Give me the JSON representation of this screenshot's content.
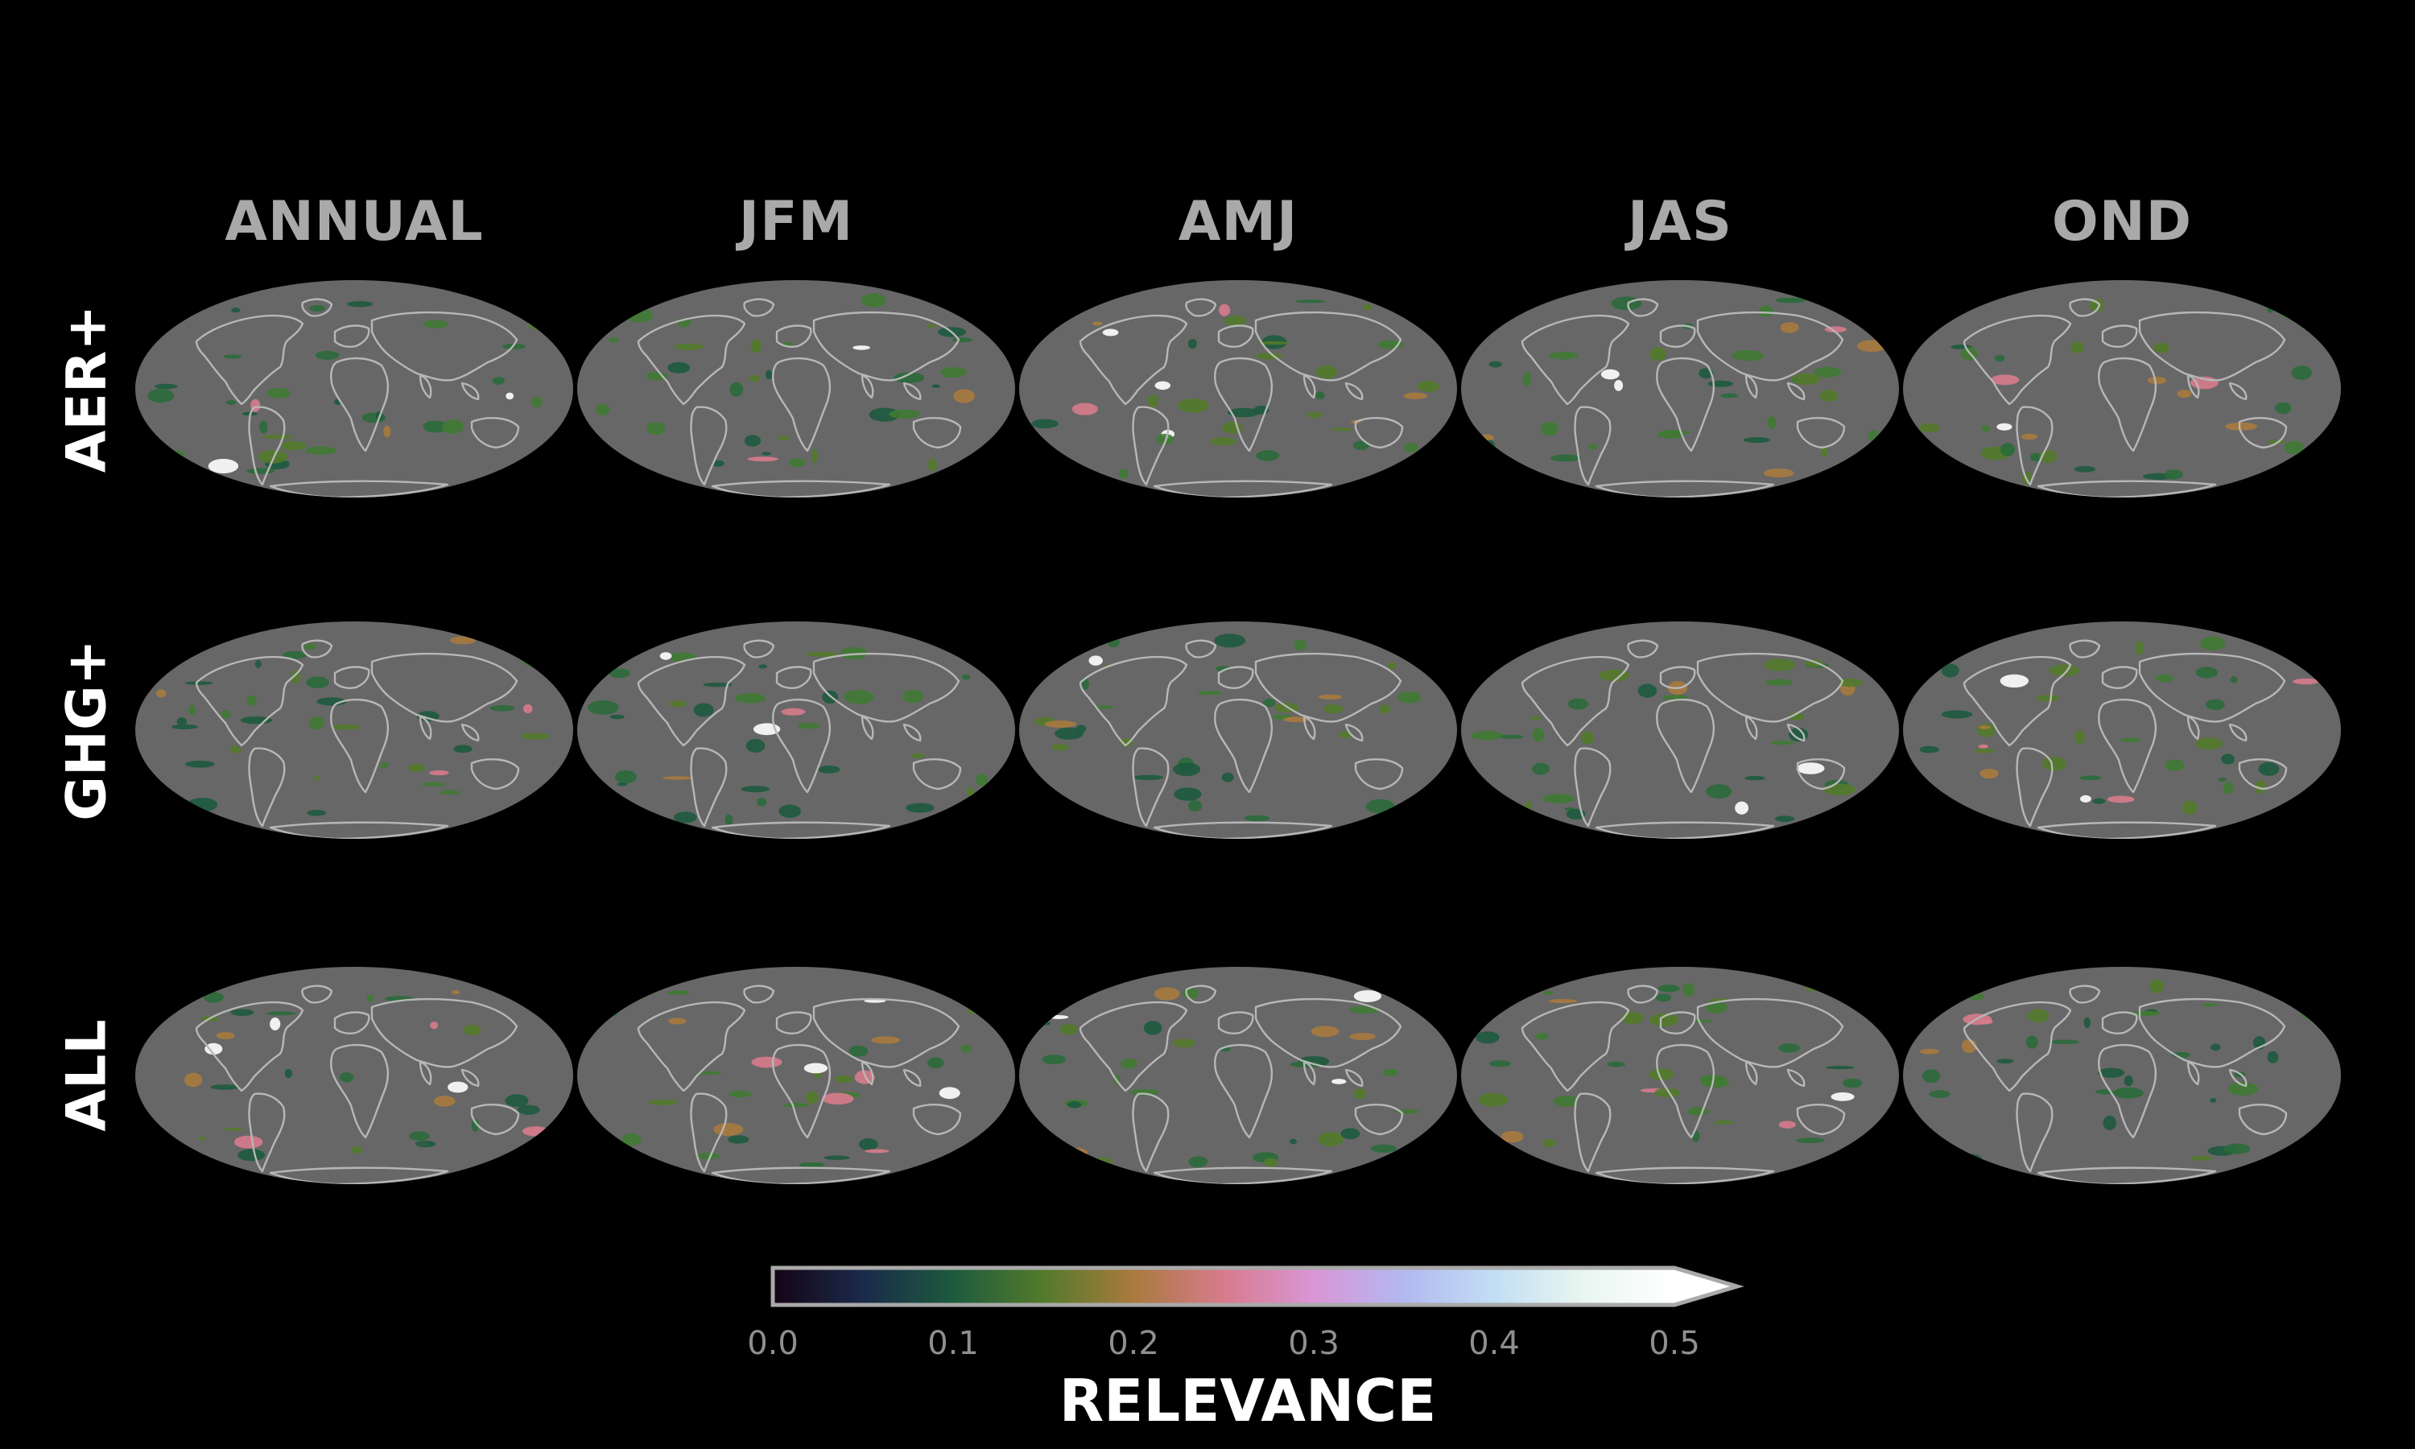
{
  "figure": {
    "columns": [
      "ANNUAL",
      "JFM",
      "AMJ",
      "JAS",
      "OND"
    ],
    "rows": [
      "AER+",
      "GHG+",
      "ALL"
    ]
  },
  "colorbar": {
    "title": "RELEVANCE",
    "ticks": [
      "0.0",
      "0.1",
      "0.2",
      "0.3",
      "0.4",
      "0.5"
    ],
    "range": [
      0.0,
      0.5
    ],
    "extend": "max",
    "colormap": "cubehelix",
    "stops": [
      "#150414",
      "#1a2a4a",
      "#1d5a3e",
      "#537a2b",
      "#a97a3e",
      "#d77b8c",
      "#d996d6",
      "#b3b8f0",
      "#c2def4",
      "#e9f6f0",
      "#ffffff"
    ]
  },
  "maps": {
    "projection": "mollweide",
    "ocean_color": "#676767",
    "coastline_color": "#b7b7b7"
  }
}
